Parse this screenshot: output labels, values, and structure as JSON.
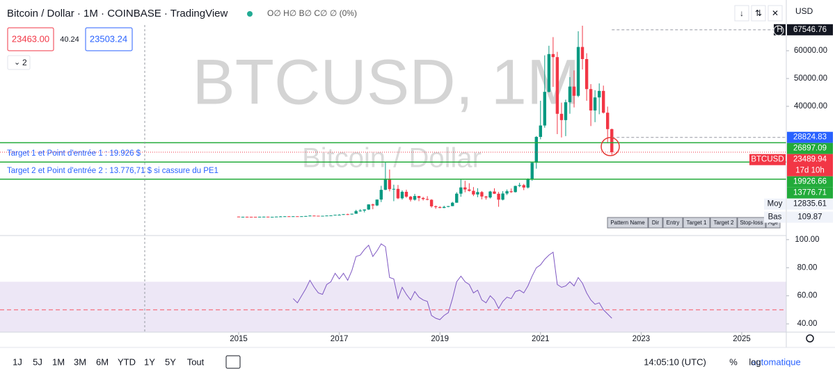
{
  "header": {
    "title": "Bitcoin / Dollar · 1M · COINBASE · TradingView",
    "ohlc": "O∅ H∅ B∅ C∅ ∅ (0%)",
    "currency": "USD"
  },
  "trade": {
    "sell": "23463.00",
    "spread": "40.24",
    "buy": "23503.24",
    "indicators": "2"
  },
  "watermark": {
    "symbol": "BTCUSD, 1M",
    "name": "Bitcoin / Dollar"
  },
  "annotations": [
    "Target 1 et Point d'entrée 1 : 19.926 $",
    "Target 2 et Point d'entrée 2 : 13.776,71 $ si cassure du PE1"
  ],
  "pattern_table": [
    "Pattern Name",
    "Dir",
    "Entry",
    "Target 1",
    "Target 2",
    "Stop-loss",
    "Age"
  ],
  "toolbar": {
    "ranges": [
      "1J",
      "5J",
      "1M",
      "3M",
      "6M",
      "YTD",
      "1Y",
      "5Y",
      "Tout"
    ],
    "time": "14:05:10 (UTC)",
    "percent": "%",
    "log": "log",
    "scale": "automatique"
  },
  "chart_data": [
    {
      "type": "candlestick",
      "up_color": "#089981",
      "down_color": "#f23645",
      "x": [
        2015,
        2015.083,
        2015.167,
        2015.25,
        2015.333,
        2015.417,
        2015.5,
        2015.583,
        2015.667,
        2015.75,
        2015.833,
        2015.917,
        2016,
        2016.083,
        2016.167,
        2016.25,
        2016.333,
        2016.417,
        2016.5,
        2016.583,
        2016.667,
        2016.75,
        2016.833,
        2016.917,
        2017,
        2017.083,
        2017.167,
        2017.25,
        2017.333,
        2017.417,
        2017.5,
        2017.583,
        2017.667,
        2017.75,
        2017.833,
        2017.917,
        2018,
        2018.083,
        2018.167,
        2018.25,
        2018.333,
        2018.417,
        2018.5,
        2018.583,
        2018.667,
        2018.75,
        2018.833,
        2018.917,
        2019,
        2019.083,
        2019.167,
        2019.25,
        2019.333,
        2019.417,
        2019.5,
        2019.583,
        2019.667,
        2019.75,
        2019.833,
        2019.917,
        2020,
        2020.083,
        2020.167,
        2020.25,
        2020.333,
        2020.417,
        2020.5,
        2020.583,
        2020.667,
        2020.75,
        2020.833,
        2020.917,
        2021,
        2021.083,
        2021.167,
        2021.25,
        2021.333,
        2021.417,
        2021.5,
        2021.583,
        2021.667,
        2021.75,
        2021.833,
        2021.917,
        2022,
        2022.083,
        2022.167,
        2022.25,
        2022.333,
        2022.417
      ],
      "open": [
        320,
        217,
        254,
        244,
        236,
        230,
        263,
        284,
        230,
        236,
        314,
        377,
        430,
        368,
        437,
        416,
        448,
        531,
        673,
        624,
        575,
        608,
        698,
        742,
        963,
        970,
        1190,
        1080,
        1350,
        2300,
        2480,
        2870,
        4700,
        4340,
        6450,
        9950,
        13850,
        10200,
        10300,
        6900,
        9240,
        7500,
        6400,
        7730,
        7030,
        6630,
        6370,
        4020,
        3740,
        3440,
        3820,
        4100,
        5320,
        8570,
        10820,
        10090,
        9590,
        8290,
        9150,
        7550,
        7200,
        9350,
        8540,
        6410,
        8630,
        9450,
        9140,
        11350,
        11650,
        10780,
        13800,
        19700,
        28990,
        33100,
        45200,
        58800,
        57700,
        37300,
        35040,
        41460,
        47100,
        43790,
        61350,
        57000,
        46200,
        38500,
        43200,
        45540,
        37700,
        31800
      ],
      "high": [
        320,
        265,
        300,
        261,
        248,
        268,
        316,
        285,
        244,
        334,
        502,
        466,
        460,
        446,
        439,
        467,
        551,
        780,
        704,
        627,
        628,
        720,
        757,
        975,
        1160,
        1210,
        1350,
        1350,
        2760,
        3000,
        2920,
        4750,
        4980,
        6470,
        11400,
        19890,
        17250,
        11800,
        11700,
        9760,
        10000,
        7760,
        8500,
        7760,
        7400,
        7680,
        6600,
        4310,
        4090,
        4210,
        4140,
        5620,
        9090,
        13880,
        13200,
        12330,
        10950,
        10540,
        9510,
        7750,
        9580,
        10500,
        9200,
        9480,
        10070,
        10430,
        11440,
        12480,
        12090,
        14100,
        19900,
        29300,
        41990,
        58350,
        61790,
        64900,
        59600,
        41330,
        42400,
        50500,
        52920,
        67000,
        69000,
        59100,
        47990,
        45800,
        48240,
        47450,
        39900,
        31950
      ],
      "low": [
        170,
        212,
        236,
        214,
        225,
        221,
        253,
        198,
        225,
        235,
        308,
        347,
        354,
        366,
        396,
        412,
        441,
        530,
        604,
        470,
        570,
        604,
        680,
        740,
        752,
        930,
        890,
        1060,
        1350,
        2100,
        1840,
        2700,
        2970,
        4100,
        5550,
        9850,
        9400,
        5870,
        6600,
        6430,
        7080,
        5750,
        6070,
        5880,
        6120,
        6200,
        3550,
        3130,
        3350,
        3380,
        3700,
        4070,
        5300,
        7450,
        9070,
        9330,
        7710,
        7300,
        6520,
        6430,
        6850,
        8460,
        3850,
        6160,
        8100,
        8860,
        8990,
        10930,
        9850,
        10430,
        13220,
        17570,
        28130,
        32300,
        44950,
        47000,
        30000,
        28800,
        29280,
        37330,
        39600,
        43290,
        53260,
        42000,
        32900,
        34300,
        37150,
        37400,
        26700,
        22600
      ],
      "close": [
        217,
        254,
        244,
        236,
        230,
        263,
        284,
        230,
        236,
        314,
        377,
        430,
        368,
        437,
        416,
        448,
        531,
        673,
        624,
        575,
        608,
        698,
        742,
        963,
        970,
        1190,
        1080,
        1350,
        2300,
        2480,
        2870,
        4700,
        4340,
        6450,
        9950,
        13850,
        10200,
        10300,
        6900,
        9240,
        7500,
        6400,
        7730,
        7030,
        6630,
        6370,
        4020,
        3740,
        3440,
        3820,
        4100,
        5320,
        8570,
        10820,
        10090,
        9590,
        8290,
        9150,
        7550,
        7200,
        9350,
        8540,
        6410,
        8630,
        9450,
        9140,
        11350,
        11650,
        10780,
        13800,
        19700,
        28990,
        33100,
        45200,
        58800,
        57700,
        37300,
        35040,
        41460,
        47100,
        43790,
        61350,
        57000,
        46200,
        38500,
        43200,
        45540,
        37700,
        31800,
        23489.94
      ],
      "xlim": [
        2010.256,
        2025.885
      ],
      "xticks": [
        2015,
        2017,
        2019,
        2021,
        2023,
        2025
      ],
      "ylim": [
        -6250,
        77000
      ],
      "yticks": [
        {
          "value": 40000,
          "label": "40000.00"
        },
        {
          "value": 50000,
          "label": "50000.00"
        },
        {
          "value": 60000,
          "label": "60000.00"
        }
      ],
      "tags": [
        {
          "value": 67546.76,
          "color": "#131722",
          "text_color": "#ffffff",
          "name": "H",
          "line": "dashed"
        },
        {
          "value": 28824.83,
          "color": "#2962ff",
          "text_color": "#ffffff",
          "line": "dashed"
        },
        {
          "value": 26897.09,
          "color": "#22ab3a",
          "text_color": "#ffffff",
          "line": "solid"
        },
        {
          "value": 23489.94,
          "color": "#f23645",
          "text_color": "#ffffff",
          "name": "BTCUSD",
          "sub": "17d 10h",
          "line": "dotted"
        },
        {
          "value": 19926.66,
          "color": "#22ab3a",
          "text_color": "#ffffff",
          "line": "solid"
        },
        {
          "value": 13776.71,
          "color": "#22ab3a",
          "text_color": "#ffffff",
          "line": "solid"
        },
        {
          "value": 12835.61,
          "color": "#f0f3fa",
          "text_color": "#131722",
          "name": "Moy"
        },
        {
          "value": 109.87,
          "color": "#f0f3fa",
          "text_color": "#131722",
          "name": "Bas"
        }
      ]
    },
    {
      "type": "line",
      "color": "#7e57c2",
      "band": [
        30,
        70
      ],
      "band_color": "#ede7f6",
      "midline": 50,
      "midline_color": "#f7525f",
      "x": [
        2016.083,
        2016.167,
        2016.25,
        2016.333,
        2016.417,
        2016.5,
        2016.583,
        2016.667,
        2016.75,
        2016.833,
        2016.917,
        2017,
        2017.083,
        2017.167,
        2017.25,
        2017.333,
        2017.417,
        2017.5,
        2017.583,
        2017.667,
        2017.75,
        2017.833,
        2017.917,
        2018,
        2018.083,
        2018.167,
        2018.25,
        2018.333,
        2018.417,
        2018.5,
        2018.583,
        2018.667,
        2018.75,
        2018.833,
        2018.917,
        2019,
        2019.083,
        2019.167,
        2019.25,
        2019.333,
        2019.417,
        2019.5,
        2019.583,
        2019.667,
        2019.75,
        2019.833,
        2019.917,
        2020,
        2020.083,
        2020.167,
        2020.25,
        2020.333,
        2020.417,
        2020.5,
        2020.583,
        2020.667,
        2020.75,
        2020.833,
        2020.917,
        2021,
        2021.083,
        2021.167,
        2021.25,
        2021.333,
        2021.417,
        2021.5,
        2021.583,
        2021.667,
        2021.75,
        2021.833,
        2021.917,
        2022,
        2022.083,
        2022.167,
        2022.25,
        2022.333,
        2022.417
      ],
      "values": [
        58,
        55,
        60,
        65,
        71,
        66,
        62,
        61,
        68,
        70,
        76,
        72,
        76,
        71,
        78,
        88,
        89,
        93,
        96,
        88,
        92,
        97,
        95,
        73,
        72,
        58,
        66,
        61,
        57,
        63,
        59,
        57,
        56,
        46,
        44,
        43,
        46,
        48,
        58,
        70,
        74,
        70,
        68,
        62,
        64,
        57,
        55,
        60,
        57,
        51,
        56,
        59,
        58,
        63,
        64,
        62,
        67,
        74,
        80,
        82,
        86,
        89,
        91,
        68,
        66,
        67,
        70,
        67,
        73,
        69,
        62,
        57,
        54,
        55,
        50,
        47,
        44
      ],
      "ylim": [
        34.1,
        102.4
      ],
      "yticks": [
        {
          "value": 100,
          "label": "100.00"
        },
        {
          "value": 80,
          "label": "80.00"
        },
        {
          "value": 60,
          "label": "60.00"
        },
        {
          "value": 40,
          "label": "40.00"
        }
      ]
    }
  ]
}
